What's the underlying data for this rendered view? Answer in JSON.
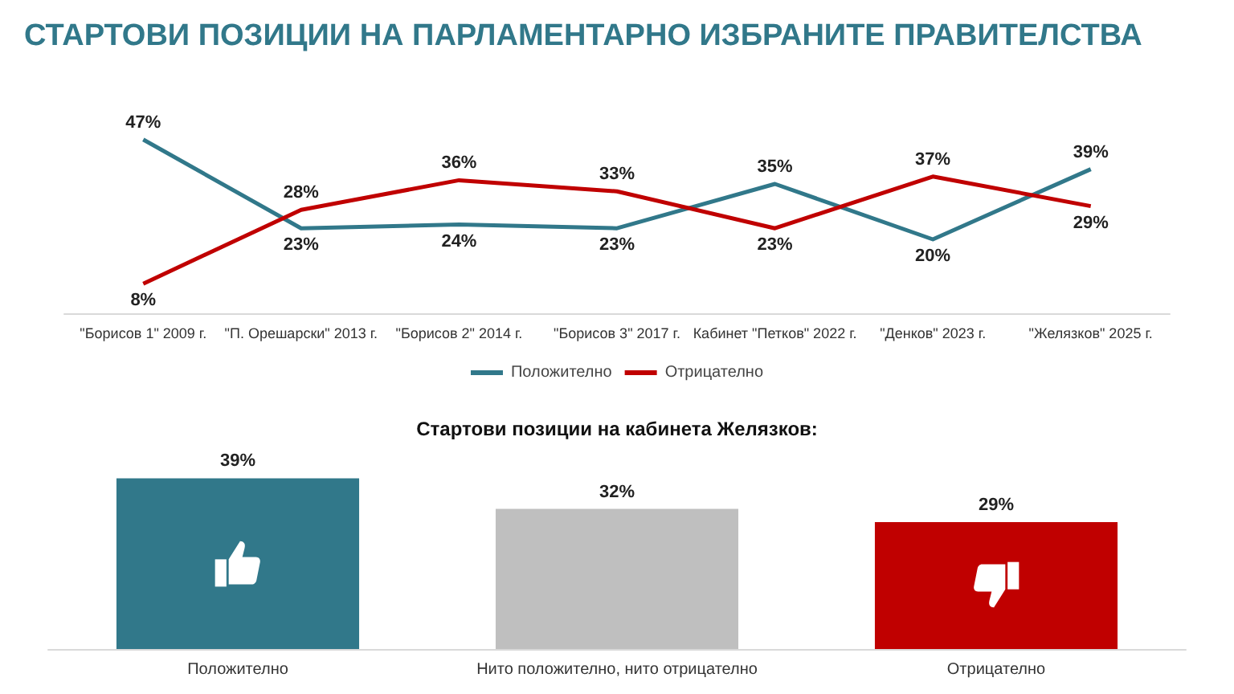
{
  "chart_data": [
    {
      "type": "line",
      "title": "СТАРТОВИ ПОЗИЦИИ НА ПАРЛАМЕНТАРНО ИЗБРАНИТЕ ПРАВИТЕЛСТВА",
      "categories": [
        "\"Борисов 1\" 2009 г.",
        "\"П. Орешарски\" 2013 г.",
        "\"Борисов 2\" 2014 г.",
        "\"Борисов 3\" 2017 г.",
        "Кабинет \"Петков\" 2022 г.",
        "\"Денков\" 2023 г.",
        "\"Желязков\" 2025 г."
      ],
      "series": [
        {
          "name": "Положително",
          "color": "#31788a",
          "values": [
            47,
            23,
            24,
            23,
            35,
            20,
            39
          ],
          "value_labels": [
            "47%",
            "23%",
            "24%",
            "23%",
            "35%",
            "20%",
            "39%"
          ]
        },
        {
          "name": "Отрицателно",
          "color": "#c00000",
          "values": [
            8,
            28,
            36,
            33,
            23,
            37,
            29
          ],
          "value_labels": [
            "8%",
            "28%",
            "36%",
            "33%",
            "23%",
            "37%",
            "29%"
          ]
        }
      ],
      "legend": "bottom",
      "grid": false,
      "marker": "none",
      "line_style": "solid"
    },
    {
      "type": "bar",
      "title": "Стартови позиции на кабинета Желязков:",
      "categories": [
        "Положително",
        "Нито положително, нито отрицателно",
        "Отрицателно"
      ],
      "values": [
        39,
        32,
        29
      ],
      "value_labels": [
        "39%",
        "32%",
        "29%"
      ],
      "colors": [
        "#31788a",
        "#bfbfbf",
        "#c00000"
      ],
      "legend": false,
      "grid": false
    }
  ]
}
